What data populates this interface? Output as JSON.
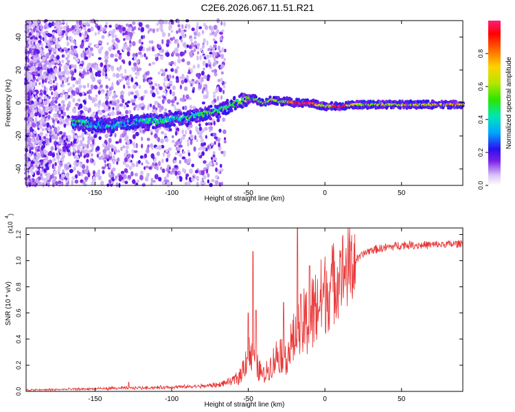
{
  "figure": {
    "title": "C2E6.2026.067.11.51.R21"
  },
  "chart_data": [
    {
      "type": "heatmap",
      "name": "spectrogram",
      "xlabel": "Height of straight line (km)",
      "ylabel": "Frequency (Hz)",
      "xlim": [
        -195,
        90
      ],
      "ylim": [
        -50,
        50
      ],
      "xticks": [
        -150,
        -100,
        -50,
        0,
        50
      ],
      "yticks": [
        -40,
        -20,
        0,
        20,
        40
      ],
      "tick_labels_x": [
        "-150",
        "-100",
        "-50",
        "0",
        "50"
      ],
      "tick_labels_y": [
        "-40",
        "-20",
        "0",
        "20",
        "40"
      ],
      "colorbar": {
        "label": "Normalized spectral amplitude",
        "range": [
          0.0,
          1.0
        ],
        "ticks": [
          0.0,
          0.2,
          0.4,
          0.6,
          0.8
        ],
        "tick_labels": [
          "0.0",
          "0.2",
          "0.4",
          "0.6",
          "0.8"
        ]
      },
      "center_track": {
        "x": [
          -160,
          -150,
          -140,
          -130,
          -120,
          -110,
          -100,
          -90,
          -80,
          -70,
          -60,
          -50,
          -45,
          -40,
          -35,
          -30,
          -25,
          -20,
          -10,
          0,
          10,
          20,
          30,
          50,
          70,
          90
        ],
        "freq": [
          -12,
          -13,
          -14,
          -12,
          -11,
          -11,
          -10,
          -9,
          -7,
          -5,
          -1,
          3,
          2,
          0,
          2,
          1,
          1,
          0,
          0,
          -2,
          -2,
          -1,
          -1,
          -1,
          -1,
          -1
        ],
        "amplitude": [
          0.45,
          0.3,
          0.35,
          0.3,
          0.35,
          0.4,
          0.4,
          0.42,
          0.45,
          0.5,
          0.5,
          0.55,
          0.55,
          0.5,
          0.6,
          0.6,
          0.6,
          0.95,
          0.95,
          0.6,
          0.95,
          0.6,
          0.6,
          0.65,
          0.7,
          0.75
        ]
      }
    },
    {
      "type": "line",
      "name": "snr",
      "xlabel": "Height of straight line (km)",
      "ylabel": "SNR (10 * v/v)",
      "scale_label": "(x10",
      "scale_exponent": "4",
      "xlim": [
        -195,
        90
      ],
      "ylim": [
        0,
        1.25
      ],
      "xticks": [
        -150,
        -100,
        -50,
        0,
        50
      ],
      "yticks": [
        0.0,
        0.2,
        0.4,
        0.6,
        0.8,
        1.0,
        1.2
      ],
      "tick_labels_x": [
        "-150",
        "-100",
        "-50",
        "0",
        "50"
      ],
      "tick_labels_y": [
        "0.0",
        "0.2",
        "0.4",
        "0.6",
        "0.8",
        "1.0",
        "1.2"
      ],
      "color": "#e83a3a",
      "series_envelope": {
        "x": [
          -195,
          -170,
          -150,
          -130,
          -110,
          -90,
          -80,
          -70,
          -60,
          -55,
          -50,
          -45,
          -40,
          -35,
          -30,
          -25,
          -20,
          -15,
          -10,
          -5,
          0,
          5,
          10,
          15,
          20,
          25,
          30,
          40,
          50,
          70,
          90
        ],
        "y": [
          0.01,
          0.015,
          0.02,
          0.025,
          0.03,
          0.035,
          0.04,
          0.05,
          0.08,
          0.12,
          0.3,
          0.2,
          0.12,
          0.2,
          0.3,
          0.28,
          0.4,
          0.5,
          0.55,
          0.65,
          0.75,
          0.82,
          0.9,
          0.95,
          1.0,
          1.05,
          1.08,
          1.1,
          1.12,
          1.12,
          1.13
        ]
      },
      "peaks": [
        {
          "x": -128,
          "y": 0.07
        },
        {
          "x": -50,
          "y": 0.6
        },
        {
          "x": -47,
          "y": 1.07
        },
        {
          "x": -45,
          "y": 0.62
        },
        {
          "x": -27,
          "y": 0.68
        },
        {
          "x": -18,
          "y": 1.25
        },
        {
          "x": -10,
          "y": 0.96
        },
        {
          "x": 10,
          "y": 1.03
        }
      ]
    }
  ],
  "colors": {
    "line": "#e83a3a",
    "axis": "#000000",
    "background": "#ffffff"
  }
}
